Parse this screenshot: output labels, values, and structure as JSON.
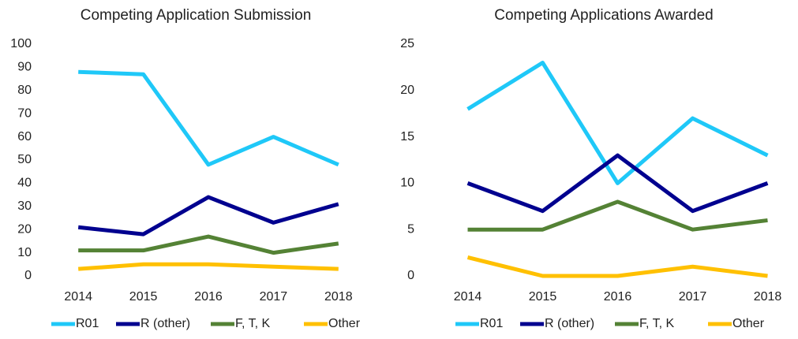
{
  "chart_data": [
    {
      "type": "line",
      "title": "Competing Application Submission",
      "categories": [
        "2014",
        "2015",
        "2016",
        "2017",
        "2018"
      ],
      "series": [
        {
          "name": "R01",
          "color": "#1fc8f8",
          "values": [
            88,
            87,
            48,
            60,
            48
          ]
        },
        {
          "name": "R (other)",
          "color": "#00008f",
          "values": [
            21,
            18,
            34,
            23,
            31
          ]
        },
        {
          "name": "F, T, K",
          "color": "#548235",
          "values": [
            11,
            11,
            17,
            10,
            14
          ]
        },
        {
          "name": "Other",
          "color": "#ffc000",
          "values": [
            3,
            5,
            5,
            4,
            3
          ]
        }
      ],
      "ylim": [
        0,
        100
      ],
      "yticks": [
        0,
        10,
        20,
        30,
        40,
        50,
        60,
        70,
        80,
        90,
        100
      ],
      "grid": false,
      "legend": "bottom"
    },
    {
      "type": "line",
      "title": "Competing Applications Awarded",
      "categories": [
        "2014",
        "2015",
        "2016",
        "2017",
        "2018"
      ],
      "series": [
        {
          "name": "R01",
          "color": "#1fc8f8",
          "values": [
            18,
            23,
            10,
            17,
            13
          ]
        },
        {
          "name": "R (other)",
          "color": "#00008f",
          "values": [
            10,
            7,
            13,
            7,
            10
          ]
        },
        {
          "name": "F, T, K",
          "color": "#548235",
          "values": [
            5,
            5,
            8,
            5,
            6
          ]
        },
        {
          "name": "Other",
          "color": "#ffc000",
          "values": [
            2,
            0,
            0,
            1,
            0
          ]
        }
      ],
      "ylim": [
        0,
        25
      ],
      "yticks": [
        0,
        5,
        10,
        15,
        20,
        25
      ],
      "grid": false,
      "legend": "bottom"
    }
  ]
}
